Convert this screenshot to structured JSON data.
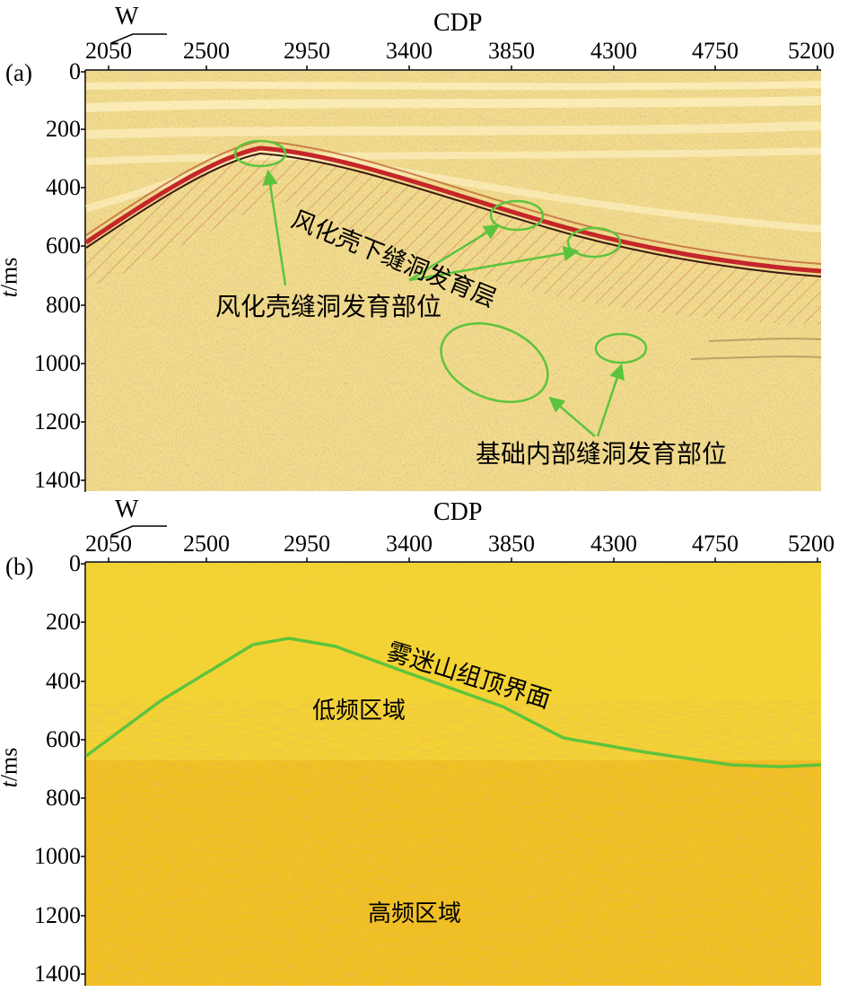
{
  "panel_a": {
    "label": "(a)",
    "direction": "W",
    "x_title": "CDP",
    "x_ticks": [
      "2050",
      "2500",
      "2950",
      "3400",
      "3850",
      "4300",
      "4750",
      "5200"
    ],
    "y_ticks": [
      "0",
      "200",
      "400",
      "600",
      "800",
      "1000",
      "1200",
      "1400"
    ],
    "y_label_italic": "t",
    "y_label_rest": "/ms",
    "annotations": {
      "weathered_layer": "风化壳下缝洞发育层",
      "crust_sites": "风化壳缝洞发育部位",
      "basement_sites": "基础内部缝洞发育部位"
    }
  },
  "panel_b": {
    "label": "(b)",
    "direction": "W",
    "x_title": "CDP",
    "x_ticks": [
      "2050",
      "2500",
      "2950",
      "3400",
      "3850",
      "4300",
      "4750",
      "5200"
    ],
    "y_ticks": [
      "0",
      "200",
      "400",
      "600",
      "800",
      "1000",
      "1200",
      "1400"
    ],
    "y_label_italic": "t",
    "y_label_rest": "/ms",
    "annotations": {
      "top_boundary": "雾迷山组顶界面",
      "low_freq": "低频区域",
      "high_freq": "高频区域"
    }
  },
  "colors": {
    "boundary_line": "#5cc43c",
    "seismic_bg": "#f3dc8c",
    "freq_bg": "#f0c020",
    "reflector_red": "#c4262a"
  }
}
